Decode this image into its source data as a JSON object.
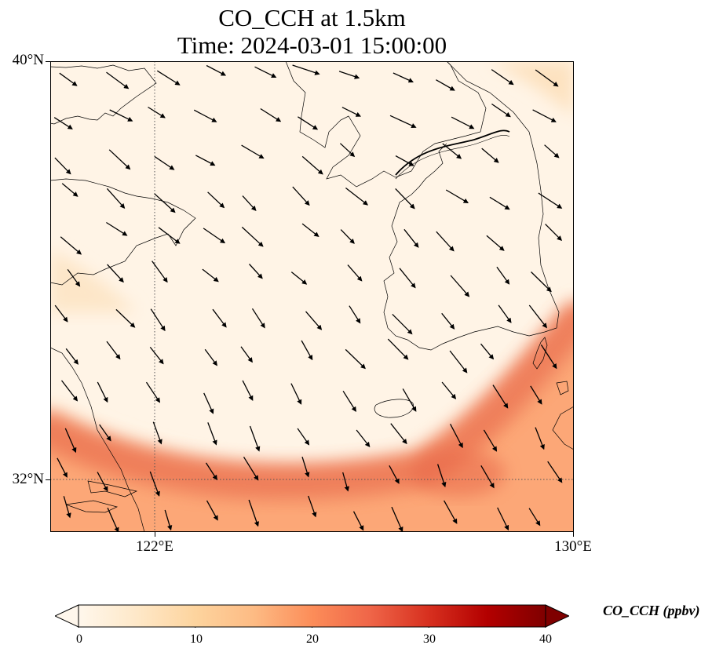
{
  "title": {
    "line1": "CO_CCH at 1.5km",
    "line2": "Time: 2024-03-01 15:00:00"
  },
  "map": {
    "lon_range": [
      120,
      130
    ],
    "lat_range": [
      31,
      40
    ],
    "gridlines": "dotted",
    "coastlines": true,
    "y_ticks": [
      "40°N",
      "32°N"
    ],
    "x_ticks": [
      "122°E",
      "130°E"
    ]
  },
  "colorbar": {
    "label": "CO_CCH (ppbv)",
    "ticks": [
      "0",
      "10",
      "20",
      "30",
      "40"
    ],
    "range": [
      0,
      40
    ],
    "extend": "both",
    "colormap": "OrRd",
    "stops": [
      "#fff7ec",
      "#fee8c8",
      "#fdd49e",
      "#fdbb84",
      "#fc8d59",
      "#ef6548",
      "#d7301f",
      "#b30000",
      "#7f0000"
    ]
  },
  "colors": {
    "background_field": "#fff4e6",
    "plume": "#ee7651",
    "coastline": "#000000",
    "wind_arrow": "#000000"
  }
}
